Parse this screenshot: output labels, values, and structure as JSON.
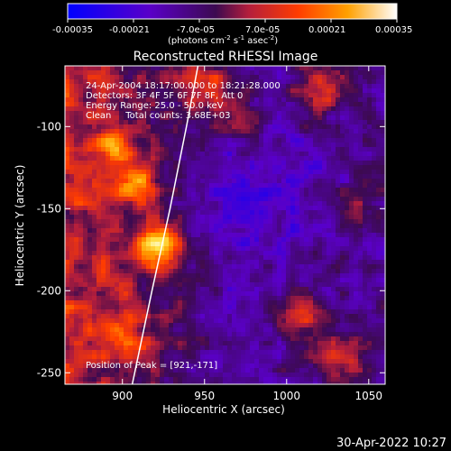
{
  "colorbar": {
    "ticks": [
      "-0.00035",
      "-0.00021",
      "-7.0e-05",
      "7.0e-05",
      "0.00021",
      "0.00035"
    ],
    "units_prefix": "(photons cm",
    "units_exp1": "-2",
    "units_mid": " s",
    "units_exp2": "-1",
    "units_mid2": " asec",
    "units_exp3": "-2",
    "units_suffix": ")"
  },
  "chart_data": {
    "type": "heatmap",
    "title": "Reconstructed RHESSI Image",
    "xlabel": "Heliocentric X (arcsec)",
    "ylabel": "Heliocentric Y (arcsec)",
    "xlim": [
      865,
      1060
    ],
    "ylim": [
      -257,
      -63
    ],
    "xticks": [
      "900",
      "950",
      "1000",
      "1050"
    ],
    "xtick_values": [
      900,
      950,
      1000,
      1050
    ],
    "yticks": [
      "-100",
      "-150",
      "-200",
      "-250"
    ],
    "ytick_values": [
      -100,
      -150,
      -200,
      -250
    ],
    "colormap": [
      "#0000ff",
      "#5a00c8",
      "#3c0a50",
      "#b41e3c",
      "#ff3c00",
      "#ffa000",
      "#ffe650",
      "#ffffff"
    ],
    "value_range": [
      -0.00035,
      0.00035
    ],
    "annotations": [
      "24-Apr-2004 18:17:00.000 to 18:21:28.000",
      "Detectors: 3F 4F 5F 6F 7F 8F, Att 0",
      "Energy Range: 25.0 - 50.0 keV",
      "Clean     Total counts: 3.68E+03"
    ],
    "peak_label": "Position of Peak = [921,-171]",
    "peak": [
      921,
      -171
    ],
    "limb": [
      [
        946,
        -63
      ],
      [
        939,
        -100
      ],
      [
        929,
        -150
      ],
      [
        918,
        -200
      ],
      [
        906,
        -257
      ]
    ]
  },
  "timestamp": "30-Apr-2022 10:27"
}
